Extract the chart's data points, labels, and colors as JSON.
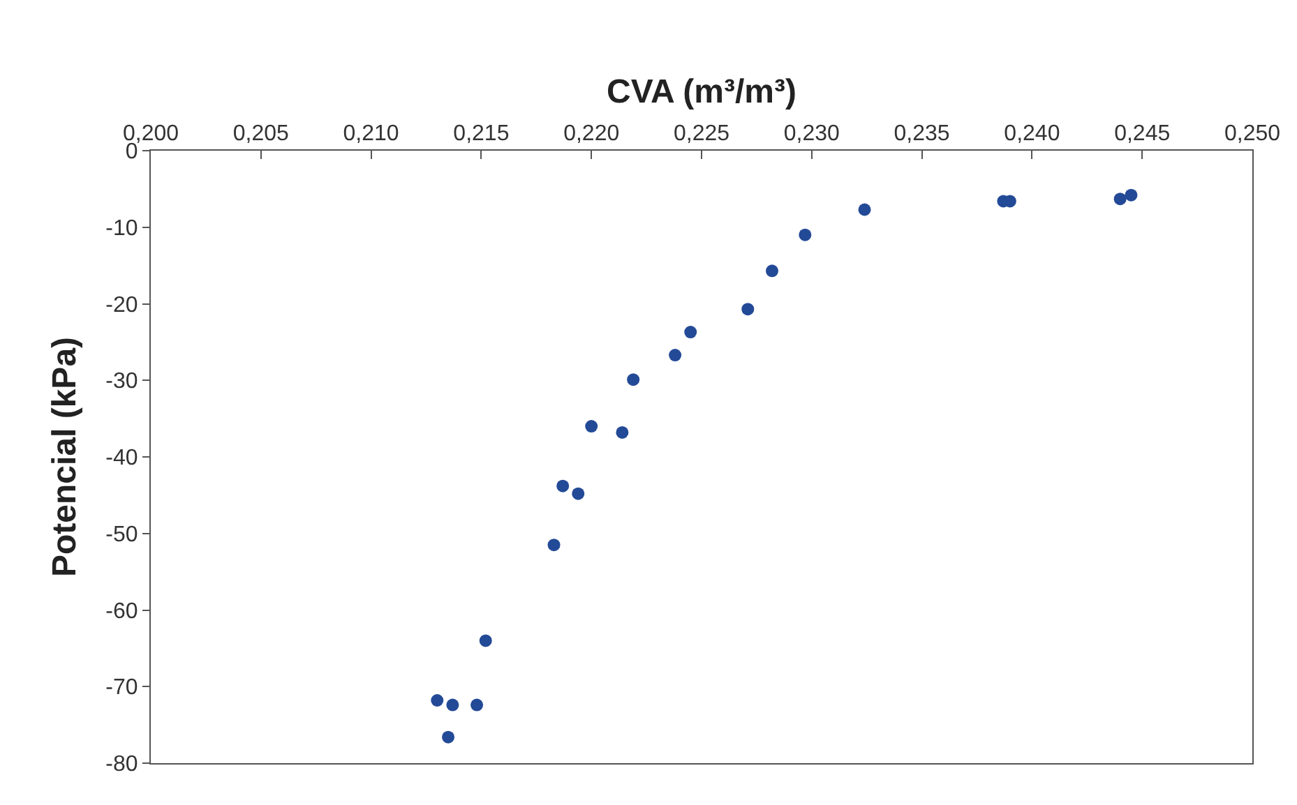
{
  "chart_data": {
    "type": "scatter",
    "xlabel": "CVA (m³/m³)",
    "ylabel": "Potencial (kPa)",
    "x": [
      0.213,
      0.2137,
      0.2135,
      0.2148,
      0.2152,
      0.2183,
      0.2187,
      0.2194,
      0.22,
      0.2214,
      0.2219,
      0.2238,
      0.2245,
      0.2271,
      0.2282,
      0.2297,
      0.2324,
      0.2387,
      0.239,
      0.244,
      0.2445
    ],
    "series": [
      {
        "color": "#234a97",
        "values": [
          -71.8,
          -72.4,
          -76.6,
          -72.4,
          -64,
          -51.5,
          -43.8,
          -44.8,
          -36,
          -36.8,
          -29.9,
          -26.7,
          -23.7,
          -20.7,
          -15.7,
          -11,
          -7.7,
          -6.6,
          -6.6,
          -6.3,
          -5.8
        ]
      }
    ],
    "xlim": [
      0.2,
      0.25
    ],
    "xticks": [
      {
        "value": 0.2,
        "label": "0,200"
      },
      {
        "value": 0.205,
        "label": "0,205"
      },
      {
        "value": 0.21,
        "label": "0,210"
      },
      {
        "value": 0.215,
        "label": "0,215"
      },
      {
        "value": 0.22,
        "label": "0,220"
      },
      {
        "value": 0.225,
        "label": "0,225"
      },
      {
        "value": 0.23,
        "label": "0,230"
      },
      {
        "value": 0.235,
        "label": "0,235"
      },
      {
        "value": 0.24,
        "label": "0,240"
      },
      {
        "value": 0.245,
        "label": "0,245"
      },
      {
        "value": 0.25,
        "label": "0,250"
      }
    ],
    "ylim": [
      -80,
      0
    ],
    "yticks": [
      -80,
      -70,
      -60,
      -50,
      -40,
      -30,
      -20,
      -10,
      0
    ],
    "marker": "circle"
  }
}
